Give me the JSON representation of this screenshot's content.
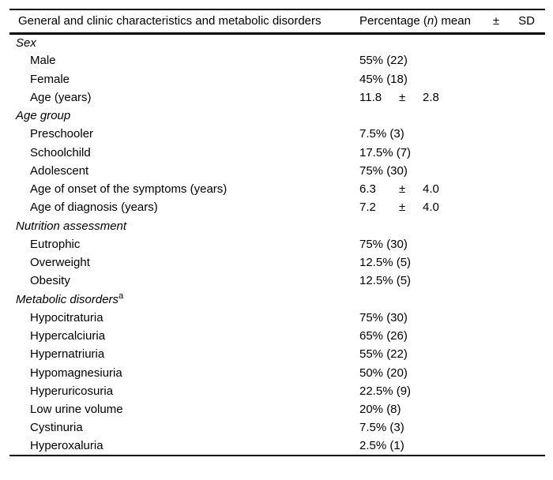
{
  "meta": {
    "background_color": "#ffffff",
    "text_color": "#000000",
    "rule_color": "#000000"
  },
  "table": {
    "header": {
      "characteristics": "General and clinic characteristics and metabolic disorders",
      "percentage_prefix": "Percentage (",
      "n_symbol": "n",
      "percentage_suffix": ") mean",
      "plus_minus": "±",
      "sd": "SD"
    },
    "rows": [
      {
        "type": "section",
        "label": "Sex"
      },
      {
        "type": "item",
        "label": "Male",
        "value": "55% (22)"
      },
      {
        "type": "item",
        "label": "Female",
        "value": "45% (18)"
      },
      {
        "type": "item",
        "label": "Age (years)",
        "mean": "11.8",
        "pm": "±",
        "sd": "2.8"
      },
      {
        "type": "section",
        "label": "Age group"
      },
      {
        "type": "item",
        "label": "Preschooler",
        "value": "7.5% (3)"
      },
      {
        "type": "item",
        "label": "Schoolchild",
        "value": "17.5% (7)"
      },
      {
        "type": "item",
        "label": "Adolescent",
        "value": "75% (30)"
      },
      {
        "type": "item",
        "label": "Age of onset of the symptoms (years)",
        "mean": "6.3",
        "pm": "±",
        "sd": "4.0"
      },
      {
        "type": "item",
        "label": "Age of diagnosis (years)",
        "mean": "7.2",
        "pm": "±",
        "sd": "4.0"
      },
      {
        "type": "section",
        "label": "Nutrition assessment"
      },
      {
        "type": "item",
        "label": "Eutrophic",
        "value": "75% (30)"
      },
      {
        "type": "item",
        "label": "Overweight",
        "value": "12.5% (5)"
      },
      {
        "type": "item",
        "label": "Obesity",
        "value": "12.5% (5)"
      },
      {
        "type": "section",
        "label": "Metabolic disorders",
        "sup": "a"
      },
      {
        "type": "item",
        "label": "Hypocitraturia",
        "value": "75% (30)"
      },
      {
        "type": "item",
        "label": "Hypercalciuria",
        "value": "65% (26)"
      },
      {
        "type": "item",
        "label": "Hypernatriuria",
        "value": "55% (22)"
      },
      {
        "type": "item",
        "label": "Hypomagnesiuria",
        "value": "50% (20)"
      },
      {
        "type": "item",
        "label": "Hyperuricosuria",
        "value": "22.5% (9)"
      },
      {
        "type": "item",
        "label": "Low urine volume",
        "value": "20% (8)"
      },
      {
        "type": "item",
        "label": "Cystinuria",
        "value": "7.5% (3)"
      },
      {
        "type": "item",
        "label": "Hyperoxaluria",
        "value": "2.5% (1)"
      }
    ]
  }
}
